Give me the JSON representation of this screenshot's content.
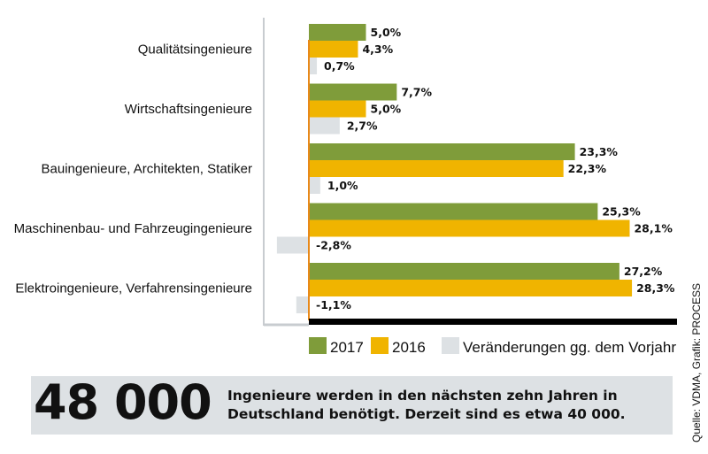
{
  "chart_data": {
    "type": "bar",
    "orientation": "horizontal",
    "categories": [
      "Qualitätsingenieure",
      "Wirtschaftsingenieure",
      "Bauingenieure, Architekten, Statiker",
      "Maschinenbau- und Fahrzeugingenieure",
      "Elektroingenieure, Verfahrensingenieure"
    ],
    "series": [
      {
        "name": "2017",
        "color": "#7f9c3a",
        "values": [
          5.0,
          7.7,
          23.3,
          25.3,
          27.2
        ],
        "labels": [
          "5,0%",
          "7,7%",
          "23,3%",
          "25,3%",
          "27,2%"
        ]
      },
      {
        "name": "2016",
        "color": "#f0b400",
        "values": [
          4.3,
          5.0,
          22.3,
          28.1,
          28.3
        ],
        "labels": [
          "4,3%",
          "5,0%",
          "22,3%",
          "28,1%",
          "28,3%"
        ]
      },
      {
        "name": "Veränderungen gg. dem Vorjahr",
        "color": "#dde1e4",
        "values": [
          0.7,
          2.7,
          1.0,
          -2.8,
          -1.1
        ],
        "labels": [
          "0,7%",
          "2,7%",
          "1,0%",
          "-2,8%",
          "-1,1%"
        ]
      }
    ],
    "legend": "bottom",
    "grid": false
  },
  "callout": {
    "number": "48 000",
    "text": "Ingenieure werden in den nächsten zehn Jahren in Deutschland benötigt. Derzeit sind es etwa 40 000."
  },
  "source": "Quelle: VDMA, Grafik: PROCESS"
}
